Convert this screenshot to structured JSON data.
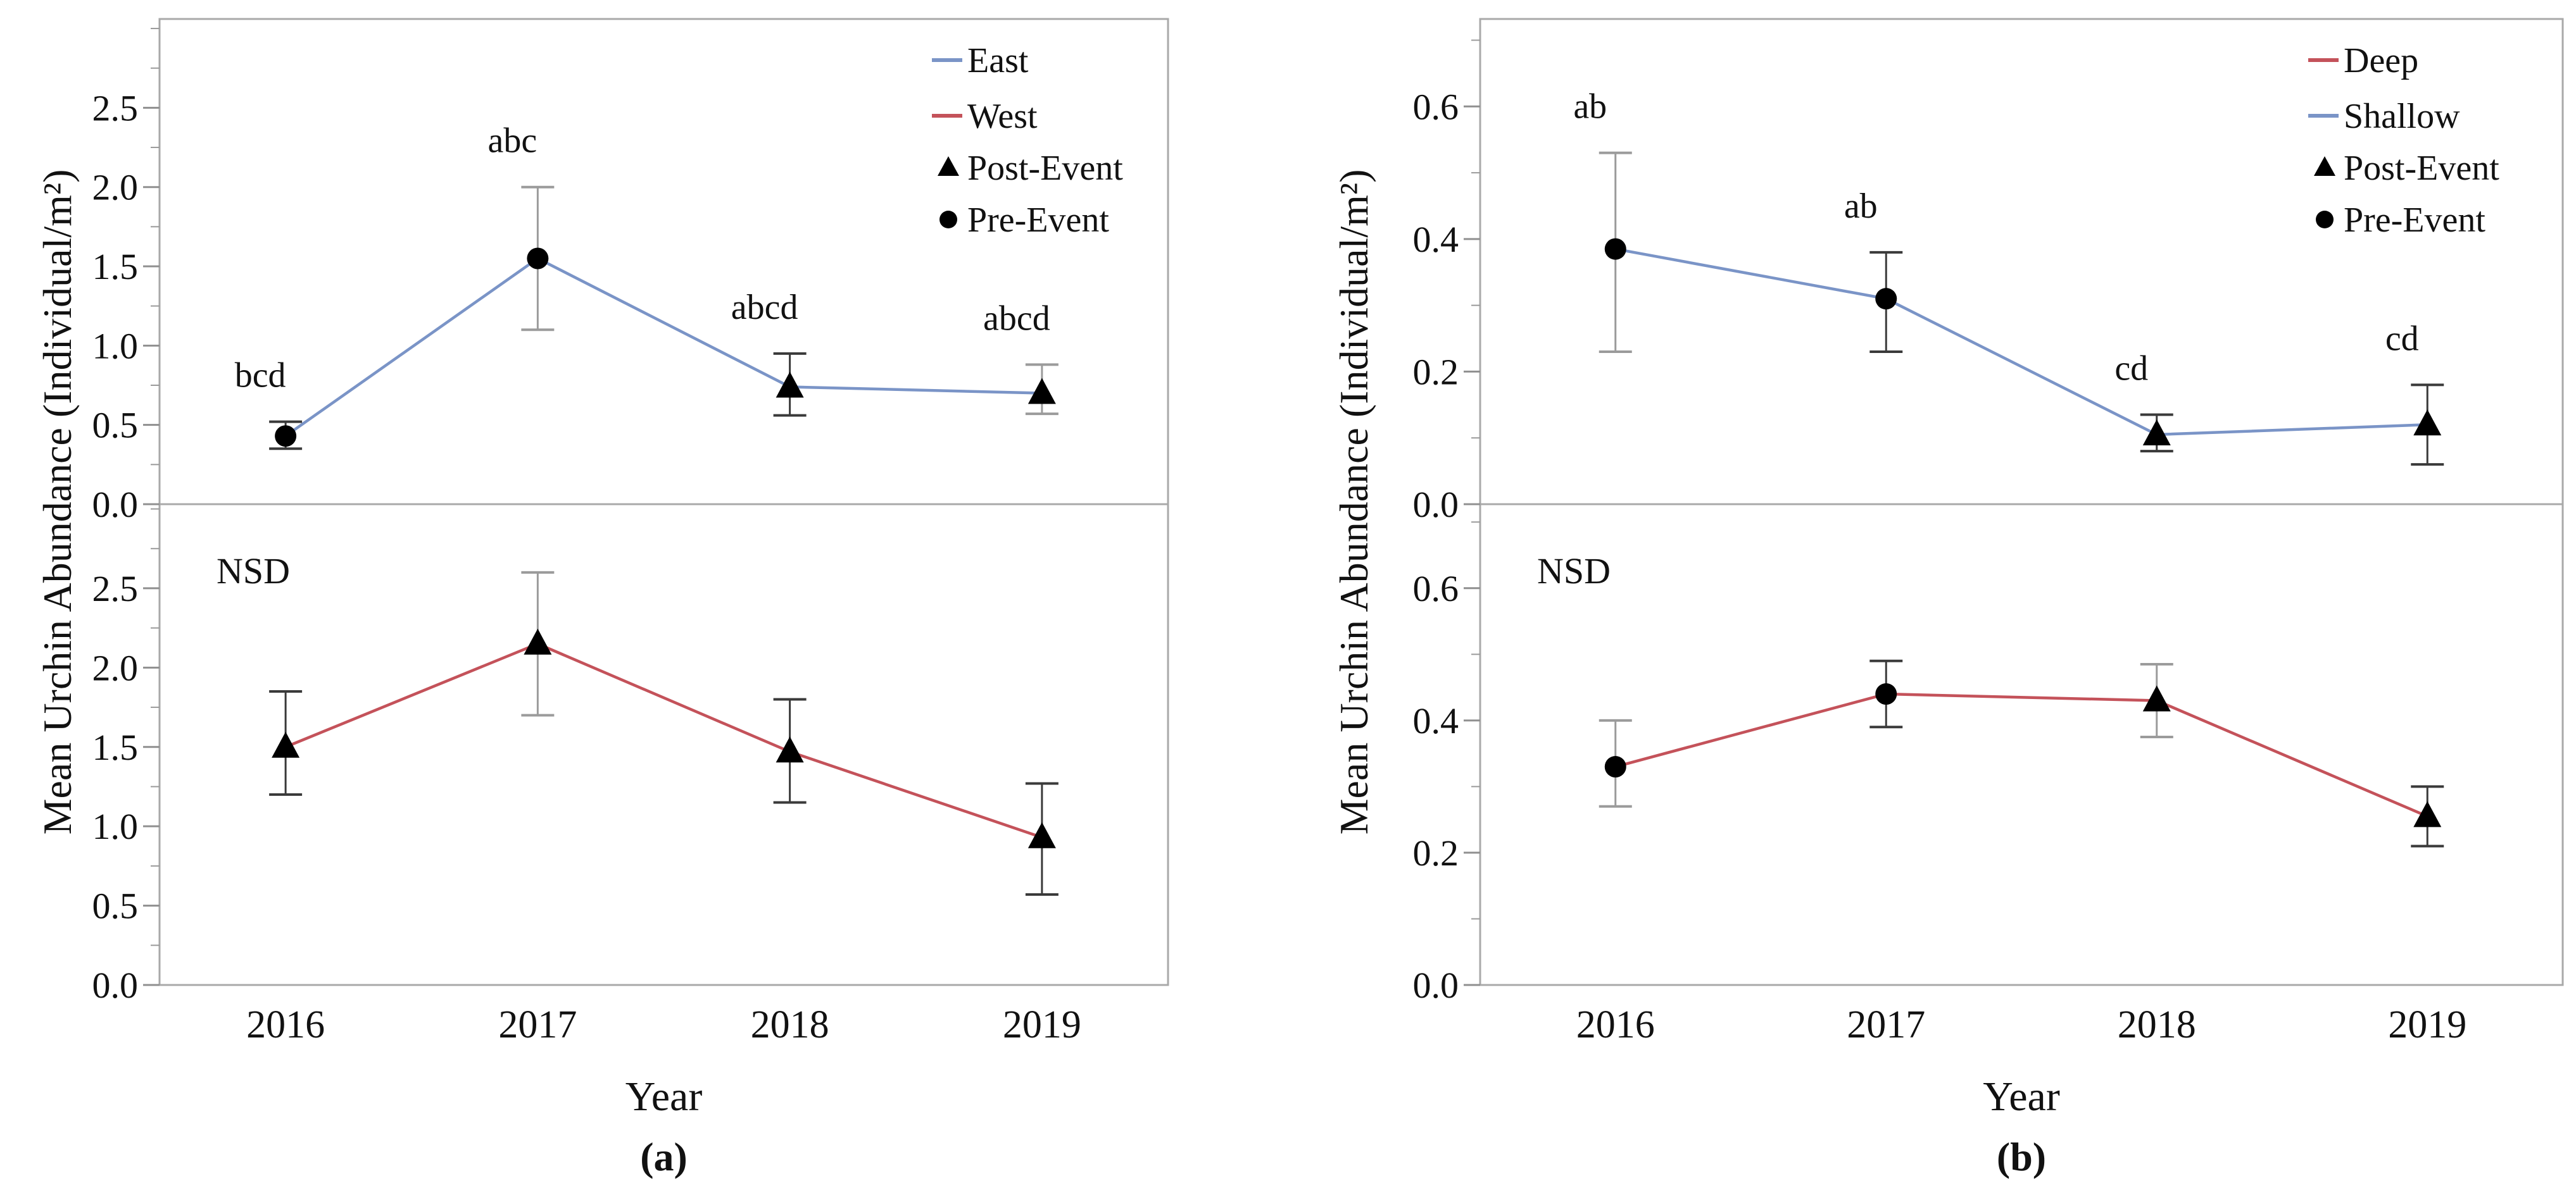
{
  "figure": {
    "description": "Mean urchin abundance line charts with error bars",
    "background": "#ffffff",
    "box_color": "#a9a9a9",
    "marker_color": "#000000",
    "err_dark": "#3a3a3a",
    "err_light": "#9b9b9b"
  },
  "chart_data": [
    {
      "type": "line",
      "panel": "a",
      "caption": "(a)",
      "xlabel": "Year",
      "ylabel": "Mean Urchin Abundance (Individual/m²)",
      "x": [
        "2016",
        "2017",
        "2018",
        "2019"
      ],
      "legend_position": "top-right",
      "legend": [
        {
          "label": "East",
          "swatch": "line",
          "color": "#7a94c7"
        },
        {
          "label": "West",
          "swatch": "line",
          "color": "#c4525a"
        },
        {
          "label": "Post-Event",
          "swatch": "triangle",
          "color": "#000000"
        },
        {
          "label": "Pre-Event",
          "swatch": "circle",
          "color": "#000000"
        }
      ],
      "subplots": [
        {
          "name": "East",
          "line_color": "#7a94c7",
          "ylim": [
            0,
            3.06
          ],
          "yticks": [
            0,
            0.5,
            1.0,
            1.5,
            2.0,
            2.5
          ],
          "ytick_labels": [
            "0.0",
            "0.5",
            "1.0",
            "1.5",
            "2.0",
            "2.5"
          ],
          "minor_step": 0.25,
          "annotation": "",
          "values": [
            0.43,
            1.55,
            0.74,
            0.7
          ],
          "err_lo": [
            0.35,
            1.1,
            0.56,
            0.57
          ],
          "err_hi": [
            0.52,
            2.0,
            0.95,
            0.88
          ],
          "err_colors": [
            "#3a3a3a",
            "#9b9b9b",
            "#3a3a3a",
            "#9b9b9b"
          ],
          "markers": [
            "circle",
            "circle",
            "triangle",
            "triangle"
          ],
          "sig_labels": [
            "bcd",
            "abc",
            "abcd",
            "abcd"
          ]
        },
        {
          "name": "West",
          "line_color": "#c4525a",
          "ylim": [
            0,
            3.03
          ],
          "yticks": [
            0,
            0.5,
            1.0,
            1.5,
            2.0,
            2.5
          ],
          "ytick_labels": [
            "0.0",
            "0.5",
            "1.0",
            "1.5",
            "2.0",
            "2.5"
          ],
          "minor_step": 0.25,
          "annotation": "NSD",
          "values": [
            1.5,
            2.15,
            1.47,
            0.93
          ],
          "err_lo": [
            1.2,
            1.7,
            1.15,
            0.57
          ],
          "err_hi": [
            1.85,
            2.6,
            1.8,
            1.27
          ],
          "err_colors": [
            "#3a3a3a",
            "#9b9b9b",
            "#3a3a3a",
            "#3a3a3a"
          ],
          "markers": [
            "triangle",
            "triangle",
            "triangle",
            "triangle"
          ],
          "sig_labels": [
            "",
            "",
            "",
            ""
          ]
        }
      ]
    },
    {
      "type": "line",
      "panel": "b",
      "caption": "(b)",
      "xlabel": "Year",
      "ylabel": "Mean Urchin Abundance (Individual/m²)",
      "x": [
        "2016",
        "2017",
        "2018",
        "2019"
      ],
      "legend_position": "top-right",
      "legend": [
        {
          "label": "Deep",
          "swatch": "line",
          "color": "#c4525a"
        },
        {
          "label": "Shallow",
          "swatch": "line",
          "color": "#7a94c7"
        },
        {
          "label": "Post-Event",
          "swatch": "triangle",
          "color": "#000000"
        },
        {
          "label": "Pre-Event",
          "swatch": "circle",
          "color": "#000000"
        }
      ],
      "subplots": [
        {
          "name": "Shallow",
          "line_color": "#7a94c7",
          "ylim": [
            0,
            0.732
          ],
          "yticks": [
            0,
            0.2,
            0.4,
            0.6
          ],
          "ytick_labels": [
            "0.0",
            "0.2",
            "0.4",
            "0.6"
          ],
          "minor_step": 0.1,
          "annotation": "",
          "values": [
            0.385,
            0.31,
            0.105,
            0.12
          ],
          "err_lo": [
            0.23,
            0.23,
            0.08,
            0.06
          ],
          "err_hi": [
            0.53,
            0.38,
            0.135,
            0.18
          ],
          "err_colors": [
            "#9b9b9b",
            "#3a3a3a",
            "#3a3a3a",
            "#3a3a3a"
          ],
          "markers": [
            "circle",
            "circle",
            "triangle",
            "triangle"
          ],
          "sig_labels": [
            "ab",
            "ab",
            "cd",
            "cd"
          ]
        },
        {
          "name": "Deep",
          "line_color": "#c4525a",
          "ylim": [
            0,
            0.727
          ],
          "yticks": [
            0,
            0.2,
            0.4,
            0.6
          ],
          "ytick_labels": [
            "0.0",
            "0.2",
            "0.4",
            "0.6"
          ],
          "minor_step": 0.1,
          "annotation": "NSD",
          "values": [
            0.33,
            0.44,
            0.43,
            0.255
          ],
          "err_lo": [
            0.27,
            0.39,
            0.375,
            0.21
          ],
          "err_hi": [
            0.4,
            0.49,
            0.485,
            0.3
          ],
          "err_colors": [
            "#9b9b9b",
            "#3a3a3a",
            "#9b9b9b",
            "#3a3a3a"
          ],
          "markers": [
            "circle",
            "circle",
            "triangle",
            "triangle"
          ],
          "sig_labels": [
            "",
            "",
            "",
            ""
          ]
        }
      ]
    }
  ]
}
